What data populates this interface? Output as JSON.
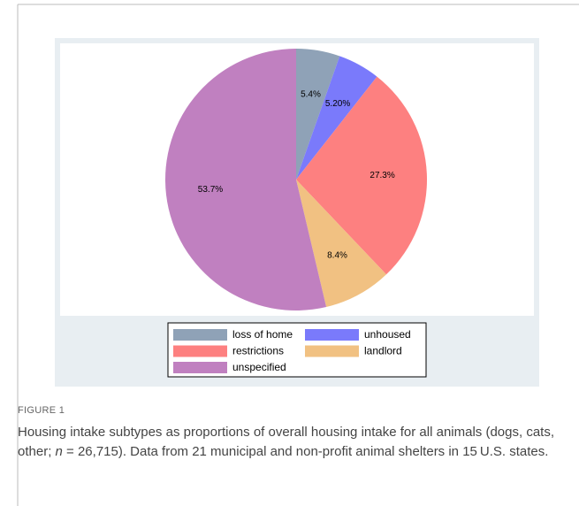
{
  "chart_data": {
    "type": "pie",
    "categories": [
      "loss of home",
      "unhoused",
      "restrictions",
      "landlord",
      "unspecified"
    ],
    "values": [
      5.4,
      5.2,
      27.3,
      8.4,
      53.7
    ],
    "value_labels": [
      "5.4%",
      "5.20%",
      "27.3%",
      "8.4%",
      "53.7%"
    ],
    "colors": [
      "#8fa2b7",
      "#7a7afb",
      "#fd8080",
      "#f1c182",
      "#c080c0"
    ],
    "legend": "bottom"
  },
  "figure": {
    "label": "FIGURE 1",
    "caption": [
      "Housing intake subtypes as proportions of overall housing intake for all animals (dogs, cats, other; ",
      "n",
      " = 26,715). Data from 21 municipal and non-profit animal shelters in 15 U.S. states."
    ]
  }
}
